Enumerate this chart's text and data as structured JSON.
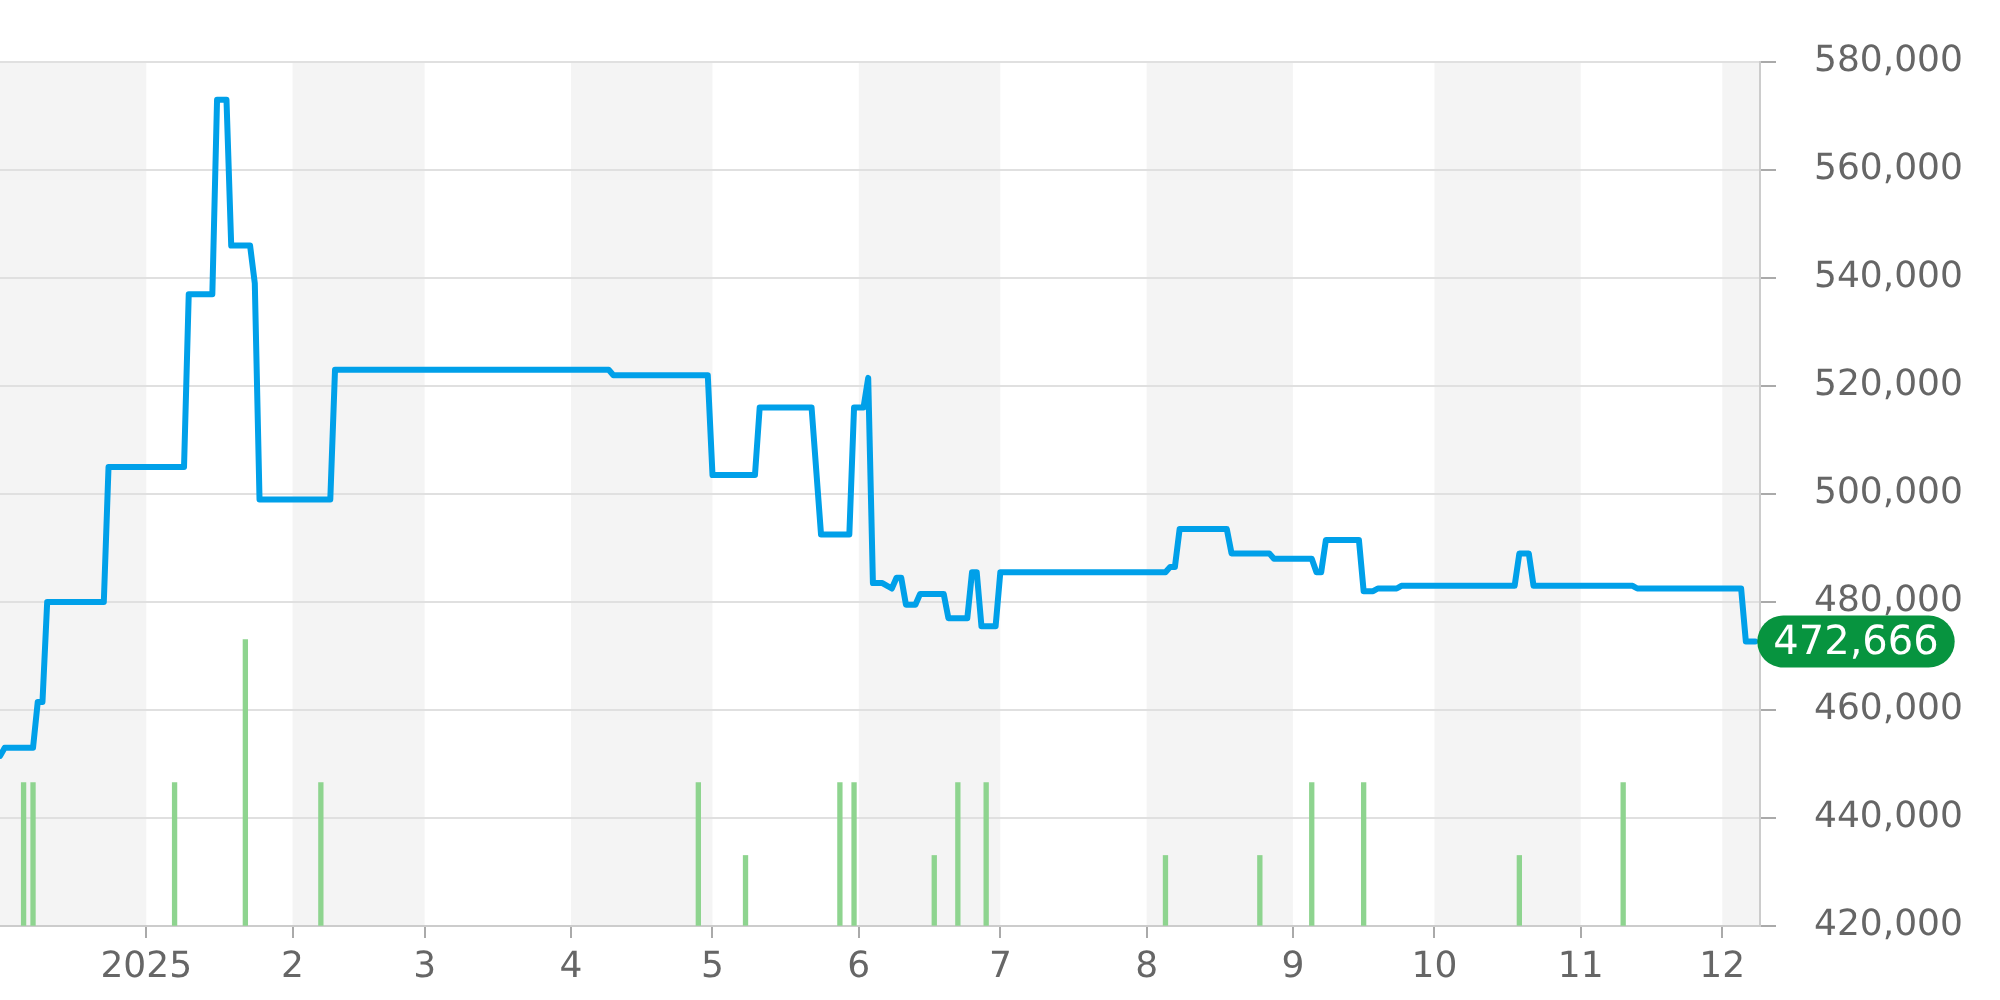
{
  "chart_data": {
    "type": "line",
    "xlim": [
      "2024-12-01",
      "2025-12-09"
    ],
    "xticks": [
      {
        "value": "2025-01-01",
        "label": "2025"
      },
      {
        "value": "2025-02-01",
        "label": "2"
      },
      {
        "value": "2025-03-01",
        "label": "3"
      },
      {
        "value": "2025-04-01",
        "label": "4"
      },
      {
        "value": "2025-05-01",
        "label": "5"
      },
      {
        "value": "2025-06-01",
        "label": "6"
      },
      {
        "value": "2025-07-01",
        "label": "7"
      },
      {
        "value": "2025-08-01",
        "label": "8"
      },
      {
        "value": "2025-09-01",
        "label": "9"
      },
      {
        "value": "2025-10-01",
        "label": "10"
      },
      {
        "value": "2025-11-01",
        "label": "11"
      },
      {
        "value": "2025-12-01",
        "label": "12"
      }
    ],
    "ylim": [
      420000,
      580000
    ],
    "yticks": [
      {
        "value": 420000,
        "label": "420,000"
      },
      {
        "value": 440000,
        "label": "440,000"
      },
      {
        "value": 460000,
        "label": "460,000"
      },
      {
        "value": 480000,
        "label": "480,000"
      },
      {
        "value": 500000,
        "label": "500,000"
      },
      {
        "value": 520000,
        "label": "520,000"
      },
      {
        "value": 540000,
        "label": "540,000"
      },
      {
        "value": 560000,
        "label": "560,000"
      },
      {
        "value": 580000,
        "label": "580,000"
      }
    ],
    "grid": "y",
    "bands": [
      {
        "axis": "x",
        "from": "2024-12-01",
        "to": "2025-01-01",
        "color": "#f4f4f4"
      },
      {
        "axis": "x",
        "from": "2025-02-01",
        "to": "2025-03-01",
        "color": "#f4f4f4"
      },
      {
        "axis": "x",
        "from": "2025-04-01",
        "to": "2025-05-01",
        "color": "#f4f4f4"
      },
      {
        "axis": "x",
        "from": "2025-06-01",
        "to": "2025-07-01",
        "color": "#f4f4f4"
      },
      {
        "axis": "x",
        "from": "2025-08-01",
        "to": "2025-09-01",
        "color": "#f4f4f4"
      },
      {
        "axis": "x",
        "from": "2025-10-01",
        "to": "2025-11-01",
        "color": "#f4f4f4"
      },
      {
        "axis": "x",
        "from": "2025-12-01",
        "to": "2025-12-09",
        "color": "#f4f4f4"
      }
    ],
    "series": [
      {
        "color": "#00a0e9",
        "x": [
          "2024-12-01",
          "2024-12-02",
          "2024-12-08",
          "2024-12-09",
          "2024-12-10",
          "2024-12-11",
          "2024-12-23",
          "2024-12-24",
          "2025-01-09",
          "2025-01-10",
          "2025-01-15",
          "2025-01-16",
          "2025-01-18",
          "2025-01-19",
          "2025-01-23",
          "2025-01-24",
          "2025-01-25",
          "2025-02-09",
          "2025-02-10",
          "2025-04-09",
          "2025-04-10",
          "2025-04-30",
          "2025-05-01",
          "2025-05-10",
          "2025-05-11",
          "2025-05-22",
          "2025-05-24",
          "2025-05-30",
          "2025-05-31",
          "2025-06-02",
          "2025-06-03",
          "2025-06-04",
          "2025-06-06",
          "2025-06-08",
          "2025-06-09",
          "2025-06-10",
          "2025-06-11",
          "2025-06-13",
          "2025-06-14",
          "2025-06-19",
          "2025-06-20",
          "2025-06-24",
          "2025-06-25",
          "2025-06-26",
          "2025-06-27",
          "2025-06-30",
          "2025-07-01",
          "2025-08-05",
          "2025-08-06",
          "2025-08-07",
          "2025-08-08",
          "2025-08-18",
          "2025-08-19",
          "2025-08-27",
          "2025-08-28",
          "2025-09-05",
          "2025-09-06",
          "2025-09-07",
          "2025-09-08",
          "2025-09-15",
          "2025-09-16",
          "2025-09-18",
          "2025-09-19",
          "2025-09-23",
          "2025-09-24",
          "2025-10-18",
          "2025-10-19",
          "2025-10-21",
          "2025-10-22",
          "2025-11-12",
          "2025-11-13",
          "2025-12-05",
          "2025-12-06",
          "2025-12-08"
        ],
        "values": [
          451500,
          453000,
          453000,
          461500,
          461500,
          480000,
          480000,
          505000,
          505000,
          537000,
          537000,
          573000,
          573000,
          546000,
          546000,
          539000,
          499000,
          499000,
          523000,
          523000,
          522000,
          522000,
          503500,
          503500,
          516000,
          516000,
          492500,
          492500,
          516000,
          516000,
          521500,
          483500,
          483500,
          482500,
          484500,
          484500,
          479500,
          479500,
          481500,
          481500,
          477000,
          477000,
          485500,
          485500,
          475500,
          475500,
          485500,
          485500,
          486500,
          486500,
          493500,
          493500,
          489000,
          489000,
          488000,
          488000,
          485500,
          485500,
          491500,
          491500,
          482000,
          482000,
          482500,
          482500,
          483000,
          483000,
          489000,
          489000,
          483000,
          483000,
          482500,
          482500,
          472666,
          472666
        ],
        "value_labels": [
          null,
          null,
          null,
          null,
          null,
          null,
          null,
          null,
          null,
          null,
          null,
          null,
          null,
          null,
          null,
          null,
          null,
          null,
          null,
          null,
          null,
          null,
          null,
          null,
          null,
          null,
          null,
          null,
          null,
          null,
          null,
          null,
          null,
          null,
          null,
          null,
          null,
          null,
          null,
          null,
          null,
          null,
          null,
          null,
          null,
          null,
          null,
          null,
          null,
          null,
          null,
          null,
          null,
          null,
          null,
          null,
          null,
          null,
          null,
          null,
          null,
          null,
          null,
          null,
          null,
          null,
          null,
          null,
          null,
          null,
          null,
          null,
          null,
          "472,666"
        ]
      },
      {
        "type": "bar",
        "color": "#8ed48f",
        "x": [
          "2024-12-06",
          "2024-12-08",
          "2025-01-07",
          "2025-01-22",
          "2025-02-07",
          "2025-04-28",
          "2025-05-08",
          "2025-05-28",
          "2025-05-31",
          "2025-06-17",
          "2025-06-22",
          "2025-06-28",
          "2025-08-05",
          "2025-08-25",
          "2025-09-05",
          "2025-09-16",
          "2025-10-19",
          "2025-11-10"
        ],
        "values": [
          446500,
          446500,
          446500,
          473000,
          446500,
          446500,
          433000,
          446500,
          446500,
          433000,
          446500,
          446500,
          433000,
          433000,
          446500,
          446500,
          433000,
          446500
        ]
      }
    ]
  }
}
